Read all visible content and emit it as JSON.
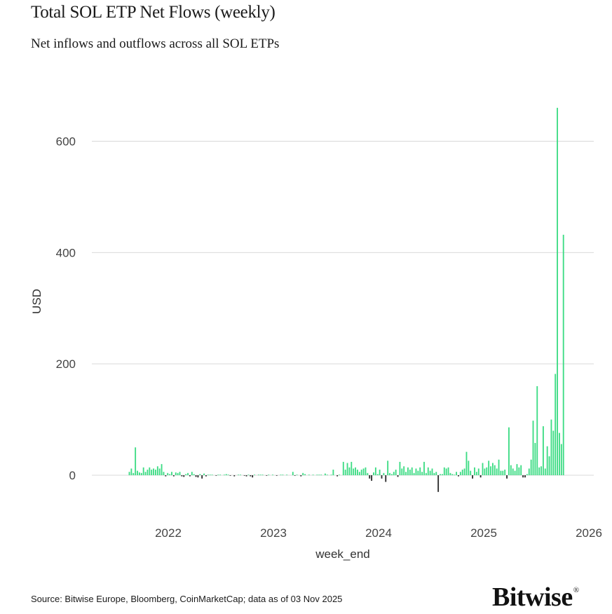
{
  "title": "Total SOL ETP Net Flows (weekly)",
  "subtitle": "Net inflows and outflows across all SOL ETPs",
  "source": "Source: Bitwise Europe, Bloomberg, CoinMarketCap; data as of 03 Nov 2025",
  "brand": "Bitwise",
  "brand_mark": "®",
  "colors": {
    "positive": "#3ddc84",
    "negative": "#2b2b2b",
    "grid": "#d9d9d9",
    "text": "#444444"
  },
  "chart_data": {
    "type": "bar",
    "title": "Total SOL ETP Net Flows (weekly)",
    "xlabel": "week_end",
    "ylabel": "USD",
    "ylim": [
      -60,
      680
    ],
    "xlim": [
      2021.0,
      2026.0
    ],
    "yticks": [
      0,
      200,
      400,
      600
    ],
    "xticks": [
      2022,
      2023,
      2024,
      2025,
      2026
    ],
    "xtick_labels": [
      "2022",
      "2023",
      "2024",
      "2025",
      "2026"
    ],
    "ytick_labels": [
      "0",
      "200",
      "400",
      "600"
    ],
    "grid": true,
    "legend": "none",
    "week_start": 2021.63,
    "week_step": 0.0192,
    "values": [
      6,
      12,
      4,
      50,
      8,
      5,
      4,
      14,
      6,
      10,
      14,
      10,
      12,
      10,
      16,
      12,
      20,
      6,
      -2,
      4,
      2,
      6,
      -2,
      5,
      4,
      6,
      -2,
      -3,
      2,
      4,
      -2,
      6,
      2,
      -3,
      -4,
      2,
      -6,
      3,
      -2,
      1,
      1,
      1,
      0,
      -1,
      1,
      1,
      0,
      1,
      2,
      1,
      -1,
      0,
      -2,
      0,
      1,
      1,
      0,
      -1,
      -2,
      1,
      -2,
      -4,
      1,
      0,
      1,
      1,
      1,
      0,
      -1,
      1,
      0,
      1,
      0,
      -1,
      0,
      1,
      1,
      0,
      1,
      0,
      0,
      6,
      -1,
      1,
      0,
      -2,
      4,
      2,
      0,
      1,
      0,
      1,
      0,
      1,
      1,
      1,
      0,
      3,
      1,
      0,
      1,
      10,
      0,
      -2,
      1,
      0,
      24,
      10,
      22,
      14,
      24,
      12,
      14,
      10,
      6,
      10,
      12,
      14,
      4,
      -6,
      -10,
      5,
      14,
      2,
      10,
      -6,
      4,
      -12,
      26,
      4,
      2,
      6,
      10,
      -3,
      24,
      12,
      16,
      6,
      14,
      10,
      14,
      4,
      12,
      8,
      14,
      6,
      24,
      4,
      14,
      8,
      12,
      4,
      6,
      -30,
      2,
      2,
      14,
      12,
      14,
      4,
      2,
      1,
      6,
      -2,
      6,
      10,
      12,
      42,
      26,
      8,
      -6,
      14,
      6,
      12,
      -4,
      22,
      12,
      14,
      26,
      16,
      22,
      18,
      12,
      28,
      8,
      8,
      10,
      -6,
      86,
      18,
      12,
      8,
      20,
      14,
      18,
      -4,
      -4,
      2,
      12,
      28,
      98,
      58,
      160,
      14,
      16,
      88,
      12,
      52,
      34,
      100,
      80,
      182,
      660,
      76,
      56,
      432
    ],
    "bar_width_days": 5
  }
}
